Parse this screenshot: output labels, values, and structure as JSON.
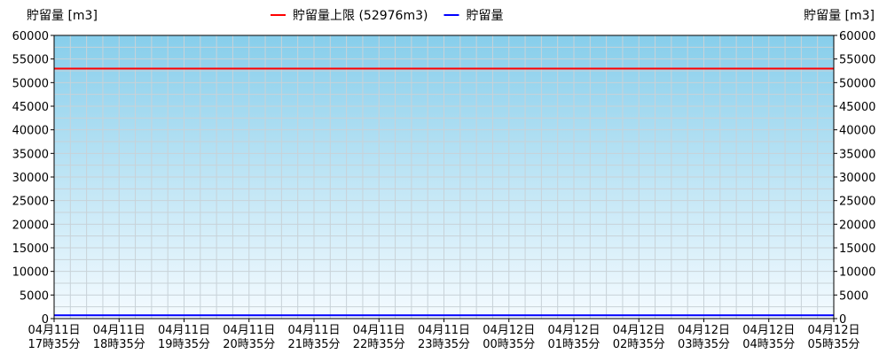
{
  "chart_data": {
    "type": "line",
    "ylabel_left": "貯留量 [m3]",
    "ylabel_right": "貯留量 [m3]",
    "ylim": [
      0,
      60000
    ],
    "y_ticks": [
      0,
      5000,
      10000,
      15000,
      20000,
      25000,
      30000,
      35000,
      40000,
      45000,
      50000,
      55000,
      60000
    ],
    "x_ticks": [
      {
        "date": "04月11日",
        "time": "17時35分"
      },
      {
        "date": "04月11日",
        "time": "18時35分"
      },
      {
        "date": "04月11日",
        "time": "19時35分"
      },
      {
        "date": "04月11日",
        "time": "20時35分"
      },
      {
        "date": "04月11日",
        "time": "21時35分"
      },
      {
        "date": "04月11日",
        "time": "22時35分"
      },
      {
        "date": "04月11日",
        "time": "23時35分"
      },
      {
        "date": "04月12日",
        "time": "00時35分"
      },
      {
        "date": "04月12日",
        "time": "01時35分"
      },
      {
        "date": "04月12日",
        "time": "02時35分"
      },
      {
        "date": "04月12日",
        "time": "03時35分"
      },
      {
        "date": "04月12日",
        "time": "04時35分"
      },
      {
        "date": "04月12日",
        "time": "05時35分"
      }
    ],
    "grid": true,
    "legend_position": "top-center",
    "series": [
      {
        "name": "貯留量上限 (52976m3)",
        "color": "#ff0000",
        "values": [
          52976,
          52976
        ]
      },
      {
        "name": "貯留量",
        "color": "#0000ff",
        "values": [
          700,
          700
        ]
      }
    ],
    "background_gradient": [
      "#87ceeb",
      "#f5fbff"
    ]
  }
}
